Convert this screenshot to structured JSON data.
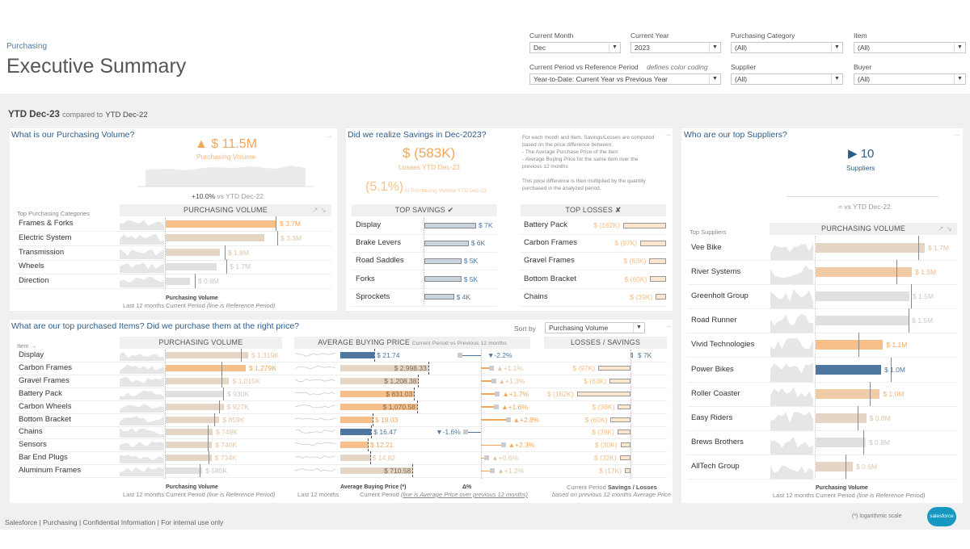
{
  "header": {
    "breadcrumb": "Purchasing",
    "title": "Executive Summary"
  },
  "filters": {
    "month": {
      "label": "Current Month",
      "value": "Dec"
    },
    "year": {
      "label": "Current Year",
      "value": "2023"
    },
    "category": {
      "label": "Purchasing Category",
      "value": "(All)"
    },
    "item": {
      "label": "Item",
      "value": "(All)"
    },
    "period": {
      "label": "Current Period vs Reference Period",
      "note": "defines color coding",
      "value": "Year-to-Date: Current Year vs Previous Year"
    },
    "supplier": {
      "label": "Supplier",
      "value": "(All)"
    },
    "buyer": {
      "label": "Buyer",
      "value": "(All)"
    }
  },
  "period": {
    "current": "YTD Dec-23",
    "compared": "compared to",
    "reference": "YTD Dec-22"
  },
  "colors": {
    "orange": "#f7c08a",
    "tan": "#e5d5c5",
    "gray": "#e0e0e0",
    "blue": "#4e77a0",
    "peach": "#f0cba5",
    "title": "#2e5d8a"
  },
  "volume": {
    "title": "What is our Purchasing Volume?",
    "kpi_icon": "▲",
    "kpi": "$ 11.5M",
    "kpi_label": "Purchasing Volume",
    "change": "+10.0%",
    "change_suffix": "vs YTD Dec-22",
    "cat_header": "Top Purchasing Categories",
    "col_header": "PURCHASING VOLUME",
    "sort_icons": "↗ ↘",
    "max": 3.7,
    "rows": [
      {
        "label": "Frames & Forks",
        "value": 3.7,
        "text": "$ 3.7M",
        "ref": 3.67,
        "tone": "orange"
      },
      {
        "label": "Electric System",
        "value": 3.3,
        "text": "$ 3.3M",
        "ref": 3.73,
        "tone": "tan"
      },
      {
        "label": "Transmission",
        "value": 1.8,
        "text": "$ 1.8M",
        "ref": 1.97,
        "tone": "tan"
      },
      {
        "label": "Wheels",
        "value": 1.7,
        "text": "$ 1.7M",
        "ref": 2.03,
        "tone": "gray"
      },
      {
        "label": "Direction",
        "value": 0.8,
        "text": "$ 0.8M",
        "ref": 0.97,
        "tone": "gray"
      }
    ],
    "legend": {
      "spark": "Last 12 months",
      "title": "Purchasing Volume",
      "sub": "Current Period",
      "note": "(line is Reference Period)"
    }
  },
  "savings": {
    "title": "Did we realize Savings in Dec-2023?",
    "kpi": "$ (583K)",
    "kpi_label": "Losses YTD Dec-23",
    "pct": "(5.1%)",
    "pct_label": "of Purchasing Volume YTD Dec-23",
    "note": [
      "For each month and Item, Savings/Losses are computed",
      "based on the price difference between:",
      "- The Average Purchase Price of the item",
      "- Average Buying Price for the same item over the",
      "previous 12 months",
      "",
      "This price difference is then multiplied by the quantity",
      "purchased in the analyzed period."
    ],
    "savings_header": "TOP SAVINGS ✔",
    "losses_header": "TOP LOSSES ✘",
    "savings_rows": [
      {
        "label": "Display",
        "value": 7,
        "text": "$ 7K"
      },
      {
        "label": "Brake Levers",
        "value": 6,
        "text": "$ 6K"
      },
      {
        "label": "Road Saddles",
        "value": 5,
        "text": "$ 5K"
      },
      {
        "label": "Forks",
        "value": 5,
        "text": "$ 5K"
      },
      {
        "label": "Sprockets",
        "value": 4,
        "text": "$ 4K"
      }
    ],
    "losses_rows": [
      {
        "label": "Battery Pack",
        "value": 162,
        "text": "$ (162K)"
      },
      {
        "label": "Carbon Frames",
        "value": 97,
        "text": "$ (97K)"
      },
      {
        "label": "Gravel Frames",
        "value": 63,
        "text": "$ (63K)"
      },
      {
        "label": "Bottom Bracket",
        "value": 60,
        "text": "$ (60K)"
      },
      {
        "label": "Chains",
        "value": 39,
        "text": "$ (39K)"
      }
    ]
  },
  "suppliers": {
    "title": "Who are our top Suppliers?",
    "kpi_icon": "▶",
    "kpi": "10",
    "kpi_label": "Suppliers",
    "change": "= vs YTD Dec-22",
    "cat_header": "Top Suppliers",
    "col_header": "PURCHASING VOLUME",
    "sort_icons": "↗ ↘",
    "max": 1.7,
    "rows": [
      {
        "label": "Vee Bike",
        "value": 1.7,
        "text": "$ 1.7M",
        "ref": 1.6,
        "tone": "tan"
      },
      {
        "label": "River Systems",
        "value": 1.5,
        "text": "$ 1.5M",
        "ref": 1.26,
        "tone": "peach"
      },
      {
        "label": "Greenholt Group",
        "value": 1.46,
        "text": "$ 1.5M",
        "ref": 1.49,
        "tone": "gray"
      },
      {
        "label": "Road Runner",
        "value": 1.45,
        "text": "$ 1.5M",
        "ref": 1.45,
        "tone": "gray"
      },
      {
        "label": "Vivid Technologies",
        "value": 1.05,
        "text": "$ 1.1M",
        "ref": 0.67,
        "tone": "orange"
      },
      {
        "label": "Power Bikes",
        "value": 1.02,
        "text": "$ 1.0M",
        "ref": 1.17,
        "tone": "blue"
      },
      {
        "label": "Roller Coaster",
        "value": 1.0,
        "text": "$ 1.0M",
        "ref": 0.84,
        "tone": "peach"
      },
      {
        "label": "Easy Riders",
        "value": 0.79,
        "text": "$ 0.8M",
        "ref": 0.66,
        "tone": "tan"
      },
      {
        "label": "Brews Brothers",
        "value": 0.78,
        "text": "$ 0.8M",
        "ref": 0.74,
        "tone": "gray"
      },
      {
        "label": "AllTech Group",
        "value": 0.58,
        "text": "$ 0.6M",
        "ref": 0.47,
        "tone": "tan"
      }
    ],
    "legend": {
      "spark": "Last 12 months",
      "title": "Purchasing Volume",
      "sub": "Current Period",
      "note": "(line is Reference Period)"
    }
  },
  "items": {
    "title": "What are our top purchased Items? Did we purchase them at the right price?",
    "sort_label": "Sort by",
    "sort_value": "Purchasing Volume",
    "item_header": "Item →",
    "vol_header": "PURCHASING VOLUME",
    "abp_header": "AVERAGE BUYING PRICE",
    "abp_sub": "Current Period vs Previous 12 months",
    "ls_header": "LOSSES / SAVINGS",
    "vol_max": 1319,
    "rows": [
      {
        "label": "Display",
        "vol": 1319,
        "vol_text": "$ 1,319K",
        "vol_ref": 1199,
        "vol_tone": "tan",
        "price": 21.74,
        "price_text": "$ 21.74",
        "price_tone": "blue",
        "delta": -2.2,
        "delta_text": "▼-2.2%",
        "ls": 7,
        "ls_text": "$ 7K"
      },
      {
        "label": "Carbon Frames",
        "vol": 1279,
        "vol_text": "$ 1,279K",
        "vol_ref": 892,
        "vol_tone": "orange",
        "price": 2998.33,
        "price_text": "$ 2,998.33",
        "price_tone": "tan",
        "delta": 1.1,
        "delta_text": "▲+1.1%",
        "ls": -97,
        "ls_text": "$ (97K)"
      },
      {
        "label": "Gravel Frames",
        "vol": 1015,
        "vol_text": "$ 1,015K",
        "vol_ref": 892,
        "vol_tone": "tan",
        "price": 1208.38,
        "price_text": "$ 1,208.38",
        "price_tone": "tan",
        "delta": 1.3,
        "delta_text": "▲+1.3%",
        "ls": -63,
        "ls_text": "$ (63K)"
      },
      {
        "label": "Battery Pack",
        "vol": 930,
        "vol_text": "$ 930K",
        "vol_ref": 918,
        "vol_tone": "gray",
        "price": 831.03,
        "price_text": "$ 831.03",
        "price_tone": "orange",
        "delta": 1.7,
        "delta_text": "▲+1.7%",
        "ls": -162,
        "ls_text": "$ (162K)"
      },
      {
        "label": "Carbon Wheels",
        "vol": 927,
        "vol_text": "$ 927K",
        "vol_ref": 853,
        "vol_tone": "tan",
        "price": 1070.58,
        "price_text": "$ 1,070.58",
        "price_tone": "orange",
        "delta": 1.6,
        "delta_text": "▲+1.6%",
        "ls": -38,
        "ls_text": "$ (38K)"
      },
      {
        "label": "Bottom Bracket",
        "vol": 859,
        "vol_text": "$ 859K",
        "vol_ref": 776,
        "vol_tone": "tan",
        "price": 19.03,
        "price_text": "$ 19.03",
        "price_tone": "orange",
        "delta": 2.8,
        "delta_text": "▲+2.8%",
        "ls": -60,
        "ls_text": "$ (60K)"
      },
      {
        "label": "Chains",
        "vol": 749,
        "vol_text": "$ 749K",
        "vol_ref": 672,
        "vol_tone": "tan",
        "price": 16.47,
        "price_text": "$ 16.47",
        "price_tone": "blue",
        "delta": -1.6,
        "delta_text": "▼-1.6%",
        "ls": -39,
        "ls_text": "$ (39K)"
      },
      {
        "label": "Sensors",
        "vol": 740,
        "vol_text": "$ 740K",
        "vol_ref": 672,
        "vol_tone": "tan",
        "price": 12.21,
        "price_text": "$ 12.21",
        "price_tone": "orange",
        "delta": 2.3,
        "delta_text": "▲+2.3%",
        "ls": -30,
        "ls_text": "$ (30K)"
      },
      {
        "label": "Bar End Plugs",
        "vol": 734,
        "vol_text": "$ 734K",
        "vol_ref": 685,
        "vol_tone": "tan",
        "price": 14.82,
        "price_text": "$ 14.82",
        "price_tone": "tan",
        "delta": 0.6,
        "delta_text": "▲+0.6%",
        "ls": -32,
        "ls_text": "$ (32K)"
      },
      {
        "label": "Aluminum Frames",
        "vol": 585,
        "vol_text": "$ 585K",
        "vol_ref": 543,
        "vol_tone": "gray",
        "price": 710.58,
        "price_text": "$ 710.58",
        "price_tone": "tan",
        "delta": 1.2,
        "delta_text": "▲+1.2%",
        "ls": -17,
        "ls_text": "$ (17K)"
      }
    ],
    "legend": {
      "spark": "Last 12 months",
      "vol_title": "Purchasing Volume",
      "vol_sub": "Current Period",
      "vol_note": "(line is Reference Period)",
      "abp_title": "Average Buying Price (*)",
      "delta_title": "Δ%",
      "abp_sub": "Current Period",
      "abp_note": "(line is Average Price over previous 12 months)",
      "ls_pre": "Current Period",
      "ls_title": "Savings / Losses",
      "ls_note": "based on previous 12 months Average Price"
    }
  },
  "footer": {
    "text": "Salesforce | Purchasing | Confidential Information | For internal use only",
    "note": "(*) logarithmic scale",
    "logo": "salesforce"
  }
}
